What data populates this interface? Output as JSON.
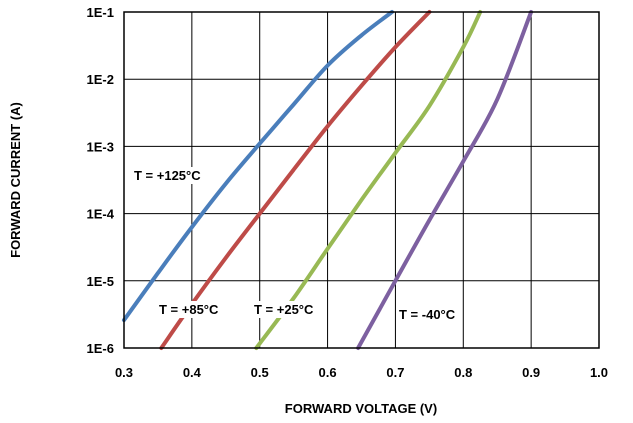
{
  "chart_data": {
    "type": "line",
    "xlabel": "FORWARD VOLTAGE (V)",
    "ylabel": "FORWARD CURRENT (A)",
    "xlim": [
      0.3,
      1.0
    ],
    "ylim": [
      1e-06,
      0.1
    ],
    "y_scale": "log",
    "grid": true,
    "x_ticks": [
      "0.3",
      "0.4",
      "0.5",
      "0.6",
      "0.7",
      "0.8",
      "0.9",
      "1.0"
    ],
    "y_ticks": [
      "1E-6",
      "1E-5",
      "1E-4",
      "1E-3",
      "1E-2",
      "1E-1"
    ],
    "series": [
      {
        "name": "T = +125°C",
        "color": "#4a7ebb",
        "points": [
          [
            0.3,
            2.6e-06
          ],
          [
            0.35,
            1.3e-05
          ],
          [
            0.4,
            6.3e-05
          ],
          [
            0.45,
            0.00028
          ],
          [
            0.5,
            0.0011
          ],
          [
            0.55,
            0.0042
          ],
          [
            0.6,
            0.016
          ],
          [
            0.65,
            0.045
          ],
          [
            0.695,
            0.1
          ]
        ]
      },
      {
        "name": "T = +85°C",
        "color": "#be4b48",
        "points": [
          [
            0.355,
            1e-06
          ],
          [
            0.4,
            4.5e-06
          ],
          [
            0.45,
            2.2e-05
          ],
          [
            0.5,
            0.0001
          ],
          [
            0.55,
            0.00045
          ],
          [
            0.6,
            0.002
          ],
          [
            0.65,
            0.008
          ],
          [
            0.7,
            0.03
          ],
          [
            0.75,
            0.1
          ]
        ]
      },
      {
        "name": "T = +25°C",
        "color": "#98b954",
        "points": [
          [
            0.495,
            1e-06
          ],
          [
            0.55,
            5.5e-06
          ],
          [
            0.6,
            3e-05
          ],
          [
            0.65,
            0.00016
          ],
          [
            0.7,
            0.0008
          ],
          [
            0.75,
            0.004
          ],
          [
            0.8,
            0.03
          ],
          [
            0.825,
            0.1
          ]
        ]
      },
      {
        "name": "T = -40°C",
        "color": "#7d60a0",
        "points": [
          [
            0.645,
            1e-06
          ],
          [
            0.7,
            1e-05
          ],
          [
            0.75,
            8e-05
          ],
          [
            0.8,
            0.0006
          ],
          [
            0.85,
            0.005
          ],
          [
            0.9,
            0.1
          ]
        ]
      }
    ]
  }
}
